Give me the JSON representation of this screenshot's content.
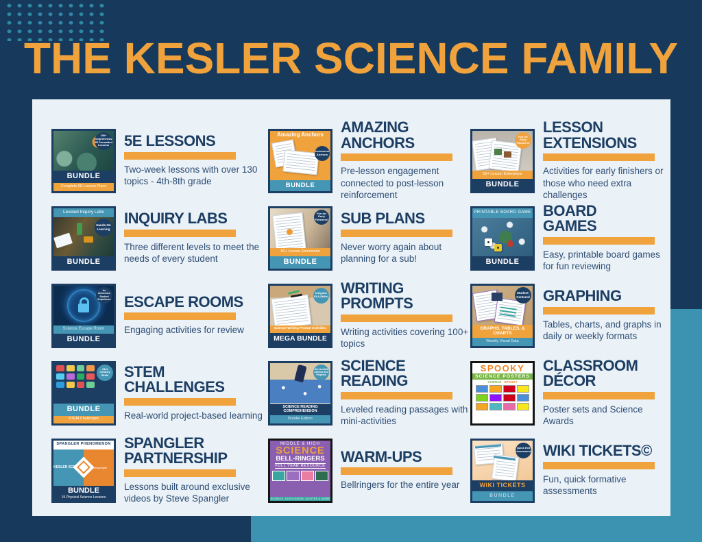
{
  "page": {
    "title": "THE KESLER SCIENCE FAMILY"
  },
  "colors": {
    "background_navy": "#173A5C",
    "accent_teal": "#3B93B1",
    "accent_orange": "#F0A23C",
    "panel_bg": "#EAF1F7",
    "heading_navy": "#1D3E63",
    "description_blue": "#2F4E74"
  },
  "products": [
    {
      "name": "5E LESSONS",
      "description": "Two-week lessons with over 130 topics - 4th-8th grade",
      "thumb": {
        "badge": "100+ Comprehensive 5E Formatted Lessons",
        "bundle": "BUNDLE",
        "strip": "Complete 5E Lesson Plans"
      }
    },
    {
      "name": "AMAZING\nANCHORS",
      "description": "Pre-lesson engagement connected to post-lesson reinforcement",
      "thumb": {
        "header": "Amazing Anchors",
        "badge": "Phenomenon Anchors",
        "bundle": "BUNDLE"
      }
    },
    {
      "name": "LESSON\nEXTENSIONS",
      "description": "Activities for early finishers or those who need extra challenges",
      "thumb": {
        "badge": "Fun for Early Finishers!",
        "strip": "50+ Lesson Extensions",
        "bundle": "BUNDLE"
      }
    },
    {
      "name": "INQUIRY LABS",
      "description": "Three different levels to meet the needs of every student",
      "thumb": {
        "header": "Leveled Inquiry Labs",
        "badge": "Hands-On Learning",
        "bundle": "BUNDLE"
      }
    },
    {
      "name": "SUB PLANS",
      "description": "Never worry again about planning for a sub!",
      "thumb": {
        "badge": "Fun for Early Finishers!",
        "strip": "50+ Lesson Extensions",
        "bundle": "BUNDLE"
      }
    },
    {
      "name": "BOARD\nGAMES",
      "description": "Easy, printable board games for fun reviewing",
      "thumb": {
        "header": "PRINTABLE BOARD GAME",
        "bundle": "BUNDLE"
      }
    },
    {
      "name": "ESCAPE ROOMS",
      "description": "Engaging activities for review",
      "thumb": {
        "badge": "An Immersive Student Experience",
        "strip": "Science Escape Room",
        "bundle": "BUNDLE"
      }
    },
    {
      "name": "WRITING\nPROMPTS",
      "description": "Writing activities covering 100+ topics",
      "thumb": {
        "badge": "Integrate ELA Skills!",
        "strip": "Science Writing Prompt Activities",
        "bundle": "MEGA BUNDLE"
      }
    },
    {
      "name": "GRAPHING",
      "description": "Tables, charts, and graphs in daily or weekly formats",
      "thumb": {
        "badge": "Student-Centered",
        "strip": "GRAPHS, TABLES, & CHARTS",
        "substrip": "Weekly Visual Data"
      }
    },
    {
      "name": "STEM\nCHALLENGES",
      "description": "Real-world project-based learning",
      "thumb": {
        "badge": "21st Century Skills",
        "bundle": "BUNDLE",
        "strip": "STEM Challenges"
      }
    },
    {
      "name": "SCIENCE\nREADING",
      "description": "Leveled reading passages with mini-activities",
      "thumb": {
        "badge": "All Leveled Articles and Projects",
        "strip": "SCIENCE READING COMPREHENSION",
        "substrip": "Bundle Edition"
      }
    },
    {
      "name": "CLASSROOM\nDÉCOR",
      "description": "Poster sets and Science Awards",
      "thumb": {
        "header": "SPOOKY",
        "strip": "SCIENCE POSTERS",
        "mini_left": "SCIENCE",
        "mini_right": "SPOOKY"
      }
    },
    {
      "name": "SPANGLER\nPARTNERSHIP",
      "description": "Lessons built around exclusive videos by Steve Spangler",
      "thumb": {
        "header": "SPANGLER PHENOMENON",
        "left_logo": "KESLER SCIENCE",
        "right_logo": "stevespangler",
        "bundle": "BUNDLE",
        "strip": "19 Physical Science Lessons"
      }
    },
    {
      "name": "WARM-UPS",
      "description": "Bellringers for the entire year",
      "thumb": {
        "line1": "MIDDLE & HIGH",
        "line2": "SCIENCE",
        "line3": "BELL-RINGERS",
        "line4": "FULL YEAR RESOURCE",
        "line5": "SCIENCE, DISCUSSION, QUOTES & MORE"
      }
    },
    {
      "name": "WIKI TICKETS©",
      "description": "Fun, quick formative assessments",
      "thumb": {
        "badge": "Quick Exit Assessments",
        "strip": "WIKI TICKETS",
        "bundle": "BUNDLE"
      }
    }
  ],
  "thumb_art": {
    "stem_tiles": [
      "#e05252",
      "#f2c94c",
      "#6fcf97",
      "#f2994a",
      "#56ccf2",
      "#bb6bd9",
      "#27ae60",
      "#eb5757",
      "#2d9cdb",
      "#f2c94c",
      "#e05252",
      "#6fcf97"
    ],
    "poster_tiles": [
      "#4a90d9",
      "#f5a623",
      "#d0021b",
      "#f8e71c",
      "#7ed321",
      "#9013fe",
      "#d0021b",
      "#4a90d9",
      "#f5a623",
      "#50b7c1",
      "#e86aa6",
      "#f8e71c"
    ],
    "warmup_minis": [
      "#3aa6a0",
      "#9b6fc0",
      "#e87ea1",
      "#2e6e4e"
    ]
  }
}
